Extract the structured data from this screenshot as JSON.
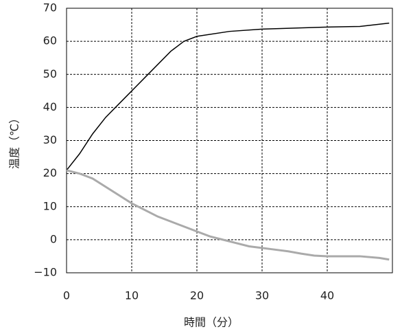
{
  "chart_data": {
    "type": "line",
    "xlabel": "時間（分）",
    "ylabel": "温度（℃）",
    "series": [
      {
        "color": "#000000",
        "x": [
          0,
          2,
          4,
          6,
          8,
          10,
          12,
          14,
          16,
          18,
          20,
          25,
          30,
          35,
          40,
          45,
          49.5
        ],
        "values": [
          21,
          26,
          32,
          37,
          41,
          45,
          49,
          53,
          57,
          60,
          61.5,
          63,
          63.7,
          64,
          64.3,
          64.5,
          65.5
        ]
      },
      {
        "color": "#aaaaaa",
        "x": [
          0,
          2,
          4,
          6,
          8,
          10,
          12,
          14,
          16,
          18,
          20,
          22,
          24,
          26,
          28,
          30,
          32,
          34,
          36,
          38,
          40,
          45,
          48,
          49.5
        ],
        "values": [
          21,
          20,
          18.5,
          16,
          13.5,
          11,
          9,
          7,
          5.5,
          4,
          2.5,
          1,
          0,
          -1,
          -2,
          -2.5,
          -3,
          -3.5,
          -4.2,
          -4.8,
          -5,
          -5,
          -5.5,
          -6
        ]
      }
    ],
    "xlim": [
      0,
      50
    ],
    "xticks": [
      0,
      10,
      20,
      30,
      40
    ],
    "ylim": [
      -10,
      70
    ],
    "yticks": [
      {
        "value": -10,
        "label": "−10"
      },
      0,
      10,
      20,
      30,
      40,
      50,
      60,
      70
    ],
    "grid": true
  }
}
